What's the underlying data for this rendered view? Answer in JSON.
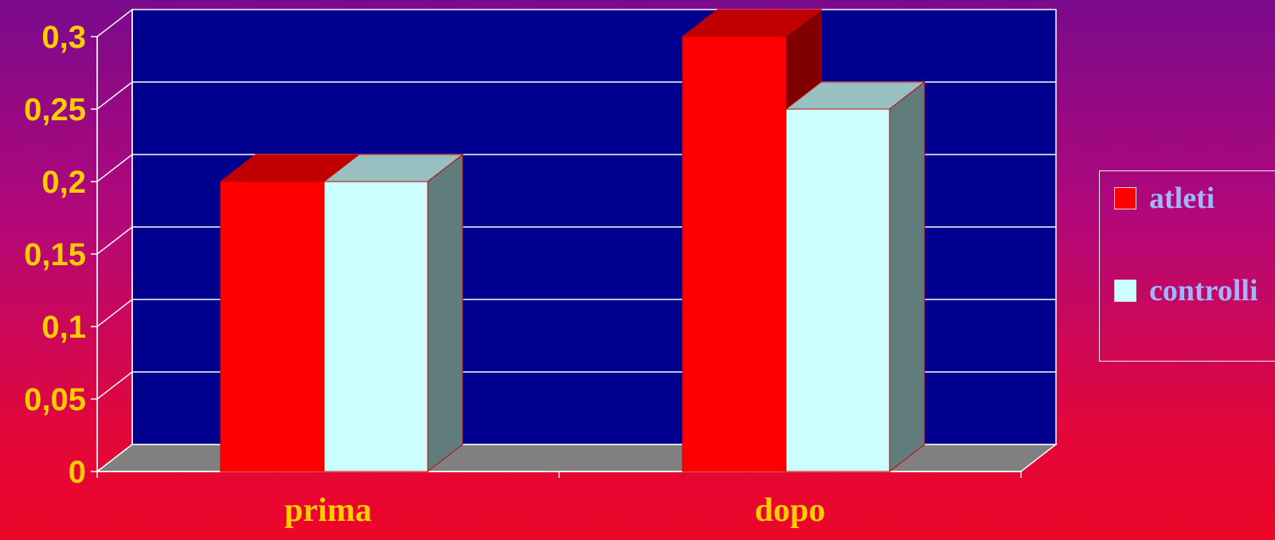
{
  "colors": {
    "wall": "#00008f",
    "floor": "#808080",
    "grid": "#ffffff",
    "tick_text": "#ffcc00",
    "category_text": "#ffcc00",
    "legend_text": "#a0b4ff"
  },
  "chart_data": {
    "type": "bar",
    "categories": [
      "prima",
      "dopo"
    ],
    "series": [
      {
        "name": "atleti",
        "values": [
          0.2,
          0.3
        ],
        "color": "#ff0000",
        "top_color": "#c00000",
        "side_color": "#800000"
      },
      {
        "name": "controlli",
        "values": [
          0.2,
          0.25
        ],
        "color": "#ccffff",
        "top_color": "#99c0c0",
        "side_color": "#607c7c"
      }
    ],
    "ylim": [
      0,
      0.3
    ],
    "yticks": [
      0,
      0.05,
      0.1,
      0.15,
      0.2,
      0.25,
      0.3
    ],
    "ytick_labels": [
      "0",
      "0,05",
      "0,1",
      "0,15",
      "0,2",
      "0,25",
      "0,3"
    ],
    "grid": true,
    "legend_position": "right",
    "style": "3d"
  }
}
